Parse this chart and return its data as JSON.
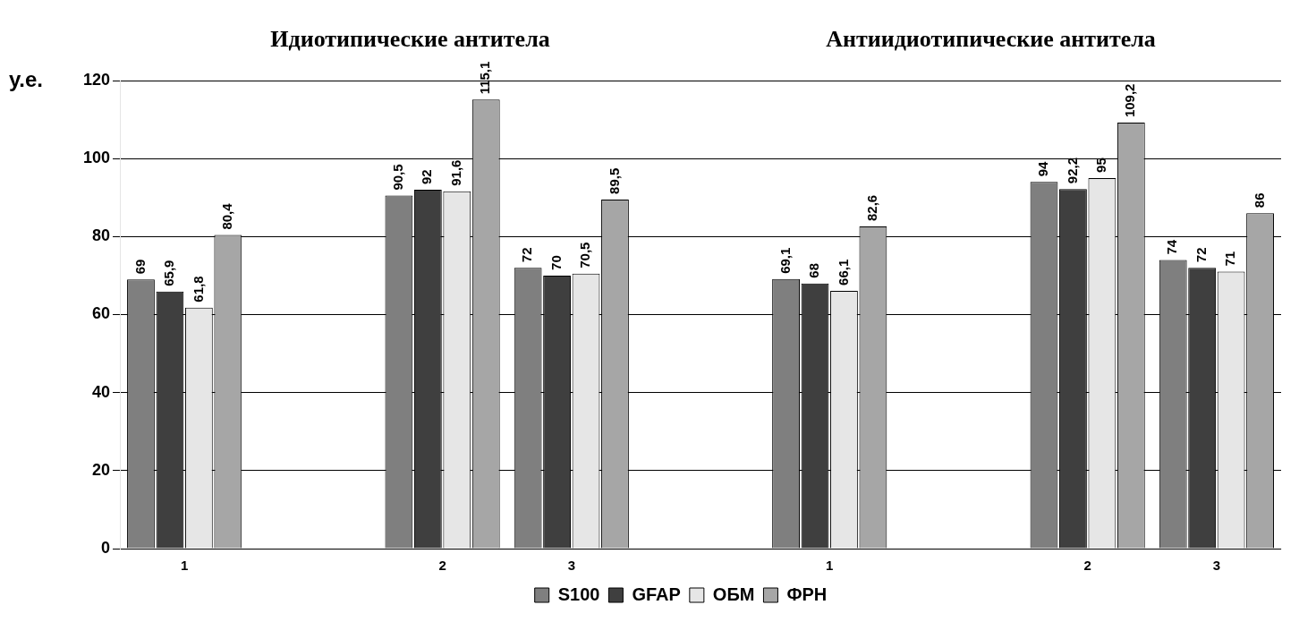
{
  "chart_data": {
    "type": "bar",
    "ylabel": "у.е.",
    "annotations": [
      "Идиотипические антитела",
      "Антиидиотипические антитела"
    ],
    "categories": [
      "1",
      null,
      "2",
      "3",
      null,
      "1",
      null,
      "2",
      "3"
    ],
    "series": [
      {
        "name": "S100",
        "color": "#7f7f7f",
        "values": [
          69,
          null,
          90.5,
          72,
          null,
          69.1,
          null,
          94,
          74
        ],
        "value_labels": [
          "69",
          null,
          "90,5",
          "72",
          null,
          "69,1",
          null,
          "94",
          "74"
        ]
      },
      {
        "name": "GFAP",
        "color": "#3f3f3f",
        "values": [
          65.9,
          null,
          92,
          70,
          null,
          68,
          null,
          92.2,
          72
        ],
        "value_labels": [
          "65,9",
          null,
          "92",
          "70",
          null,
          "68",
          null,
          "92,2",
          "72"
        ]
      },
      {
        "name": "ОБМ",
        "color": "#e6e6e6",
        "values": [
          61.8,
          null,
          91.6,
          70.5,
          null,
          66.1,
          null,
          95,
          71
        ],
        "value_labels": [
          "61,8",
          null,
          "91,6",
          "70,5",
          null,
          "66,1",
          null,
          "95",
          "71"
        ]
      },
      {
        "name": "ФРН",
        "color": "#a6a6a6",
        "values": [
          80.4,
          null,
          115.1,
          89.5,
          null,
          82.6,
          null,
          109.2,
          86
        ],
        "value_labels": [
          "80,4",
          null,
          "115,1",
          "89,5",
          null,
          "82,6",
          null,
          "109,2",
          "86"
        ]
      }
    ],
    "ylim": [
      0,
      120
    ],
    "yticks": [
      0,
      20,
      40,
      60,
      80,
      100,
      120
    ],
    "grid": "y",
    "legend": "bottom"
  }
}
